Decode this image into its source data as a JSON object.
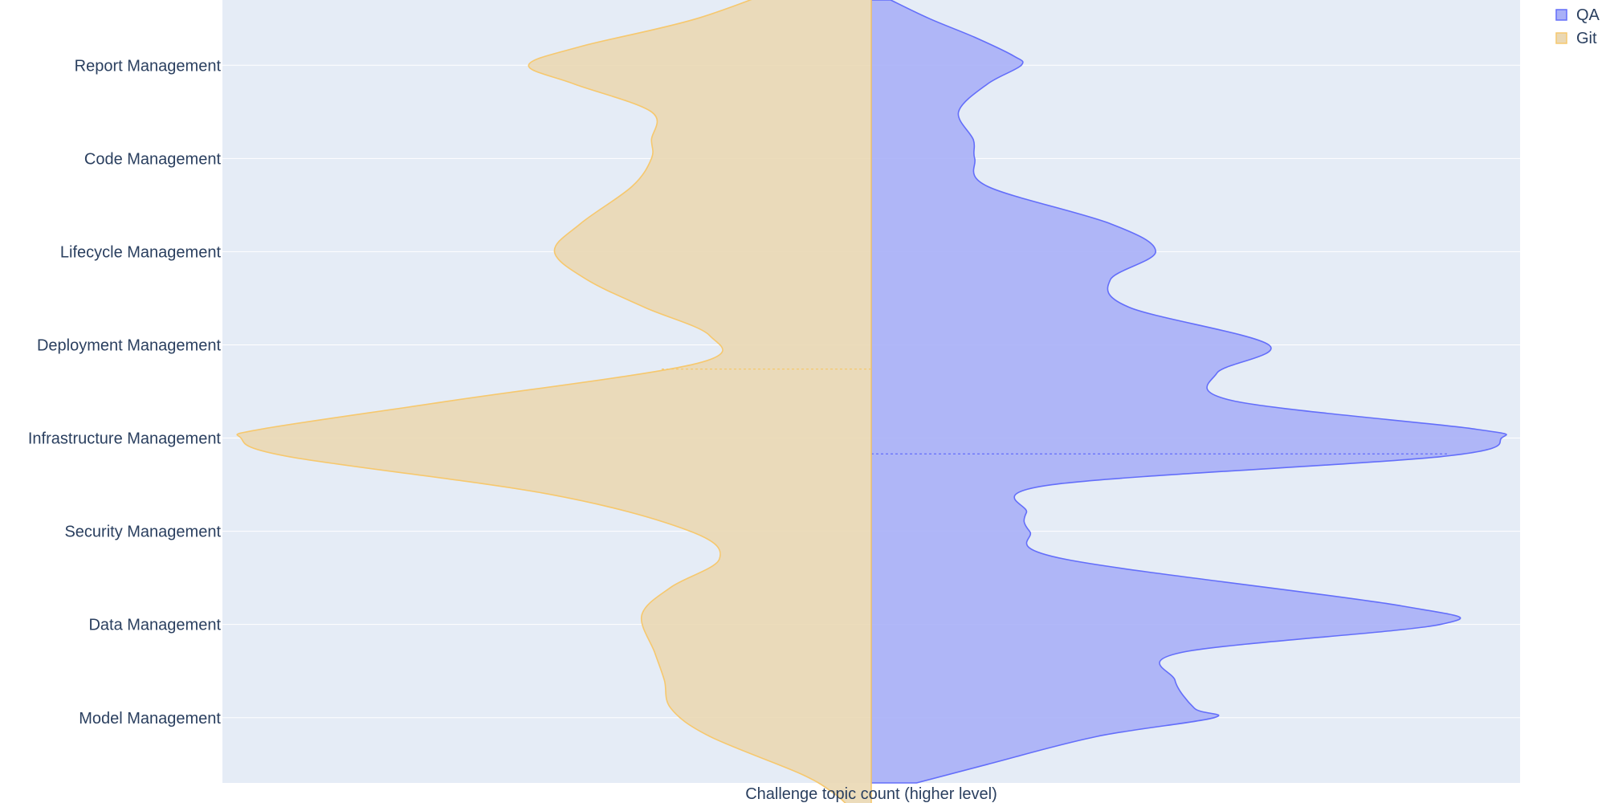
{
  "chart_data": {
    "type": "violin",
    "orientation": "horizontal",
    "side_layout": "split",
    "title": "",
    "xlabel": "Challenge topic count (higher level)",
    "ylabel": "",
    "categories": [
      "Report Management",
      "Code Management",
      "Lifecycle Management",
      "Deployment Management",
      "Infrastructure Management",
      "Security Management",
      "Data Management",
      "Model Management"
    ],
    "category_span": [
      -0.7,
      7.7
    ],
    "x_ticks_visible": false,
    "grid": true,
    "legend_position": "top-right",
    "series": [
      {
        "name": "QA",
        "side": "positive",
        "color": "#636efa",
        "fill": "#a9b0f7",
        "extent": [
          -0.7,
          7.7
        ],
        "mean": 4.17,
        "density": [
          [
            -0.7,
            0.03
          ],
          [
            -0.5,
            0.09
          ],
          [
            -0.3,
            0.16
          ],
          [
            -0.1,
            0.22
          ],
          [
            0.0,
            0.232
          ],
          [
            0.2,
            0.18
          ],
          [
            0.5,
            0.135
          ],
          [
            0.8,
            0.158
          ],
          [
            1.0,
            0.16
          ],
          [
            1.3,
            0.18
          ],
          [
            1.7,
            0.37
          ],
          [
            2.0,
            0.44
          ],
          [
            2.3,
            0.37
          ],
          [
            2.6,
            0.4
          ],
          [
            3.0,
            0.615
          ],
          [
            3.3,
            0.535
          ],
          [
            3.6,
            0.56
          ],
          [
            3.9,
            0.93
          ],
          [
            4.0,
            0.975
          ],
          [
            4.2,
            0.88
          ],
          [
            4.5,
            0.28
          ],
          [
            4.8,
            0.24
          ],
          [
            5.0,
            0.245
          ],
          [
            5.3,
            0.3
          ],
          [
            5.8,
            0.82
          ],
          [
            6.0,
            0.88
          ],
          [
            6.3,
            0.48
          ],
          [
            6.6,
            0.47
          ],
          [
            6.9,
            0.5
          ],
          [
            7.0,
            0.53
          ],
          [
            7.2,
            0.35
          ],
          [
            7.5,
            0.18
          ],
          [
            7.7,
            0.07
          ]
        ]
      },
      {
        "name": "Git",
        "side": "negative",
        "color": "#f6c86e",
        "fill": "#ead8b4",
        "extent": [
          -0.95,
          7.95
        ],
        "mean": 3.26,
        "density": [
          [
            -0.95,
            0.07
          ],
          [
            -0.9,
            0.11
          ],
          [
            -0.5,
            0.27
          ],
          [
            -0.2,
            0.45
          ],
          [
            0.0,
            0.53
          ],
          [
            0.2,
            0.46
          ],
          [
            0.5,
            0.34
          ],
          [
            0.8,
            0.34
          ],
          [
            1.0,
            0.34
          ],
          [
            1.3,
            0.37
          ],
          [
            1.7,
            0.45
          ],
          [
            2.0,
            0.49
          ],
          [
            2.3,
            0.44
          ],
          [
            2.6,
            0.35
          ],
          [
            2.9,
            0.25
          ],
          [
            3.2,
            0.27
          ],
          [
            3.6,
            0.65
          ],
          [
            3.9,
            0.94
          ],
          [
            4.0,
            0.975
          ],
          [
            4.2,
            0.9
          ],
          [
            4.6,
            0.5
          ],
          [
            5.0,
            0.28
          ],
          [
            5.3,
            0.235
          ],
          [
            5.6,
            0.31
          ],
          [
            5.9,
            0.355
          ],
          [
            6.3,
            0.335
          ],
          [
            6.6,
            0.32
          ],
          [
            6.9,
            0.31
          ],
          [
            7.2,
            0.25
          ],
          [
            7.6,
            0.11
          ],
          [
            7.8,
            0.06
          ],
          [
            7.95,
            0.035
          ]
        ]
      }
    ]
  }
}
